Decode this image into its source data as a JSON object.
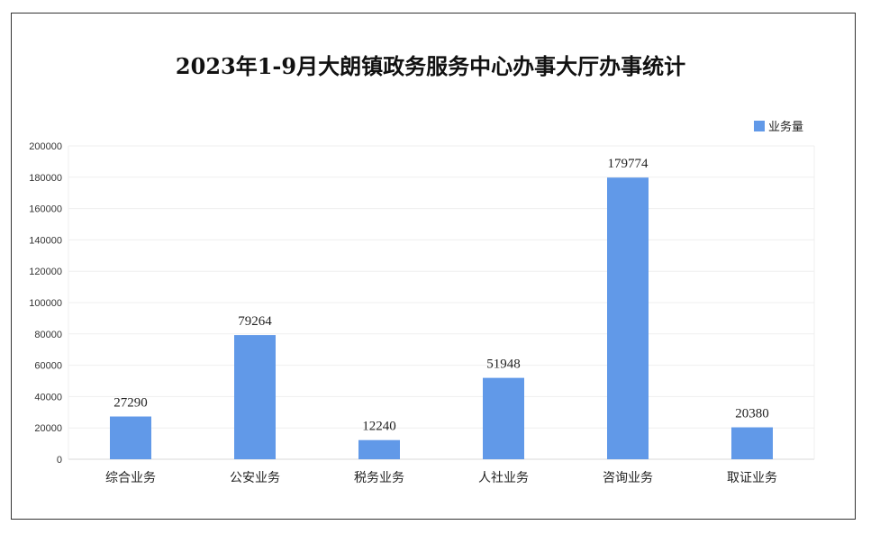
{
  "chart_data": {
    "type": "bar",
    "title": "2023年1-9月大朗镇政务服务中心办事大厅办事统计",
    "categories": [
      "综合业务",
      "公安业务",
      "税务业务",
      "人社业务",
      "咨询业务",
      "取证业务"
    ],
    "series": [
      {
        "name": "业务量",
        "values": [
          27290,
          79264,
          12240,
          51948,
          179774,
          20380
        ],
        "color": "#6199e8"
      }
    ],
    "data_labels": [
      "27290",
      "79264",
      "12240",
      "51948",
      "179774",
      "20380"
    ],
    "yticks": [
      "0",
      "20000",
      "40000",
      "60000",
      "80000",
      "100000",
      "120000",
      "140000",
      "160000",
      "180000",
      "200000"
    ],
    "ylim": [
      0,
      200000
    ],
    "grid": true,
    "legend_position": "top-right"
  }
}
